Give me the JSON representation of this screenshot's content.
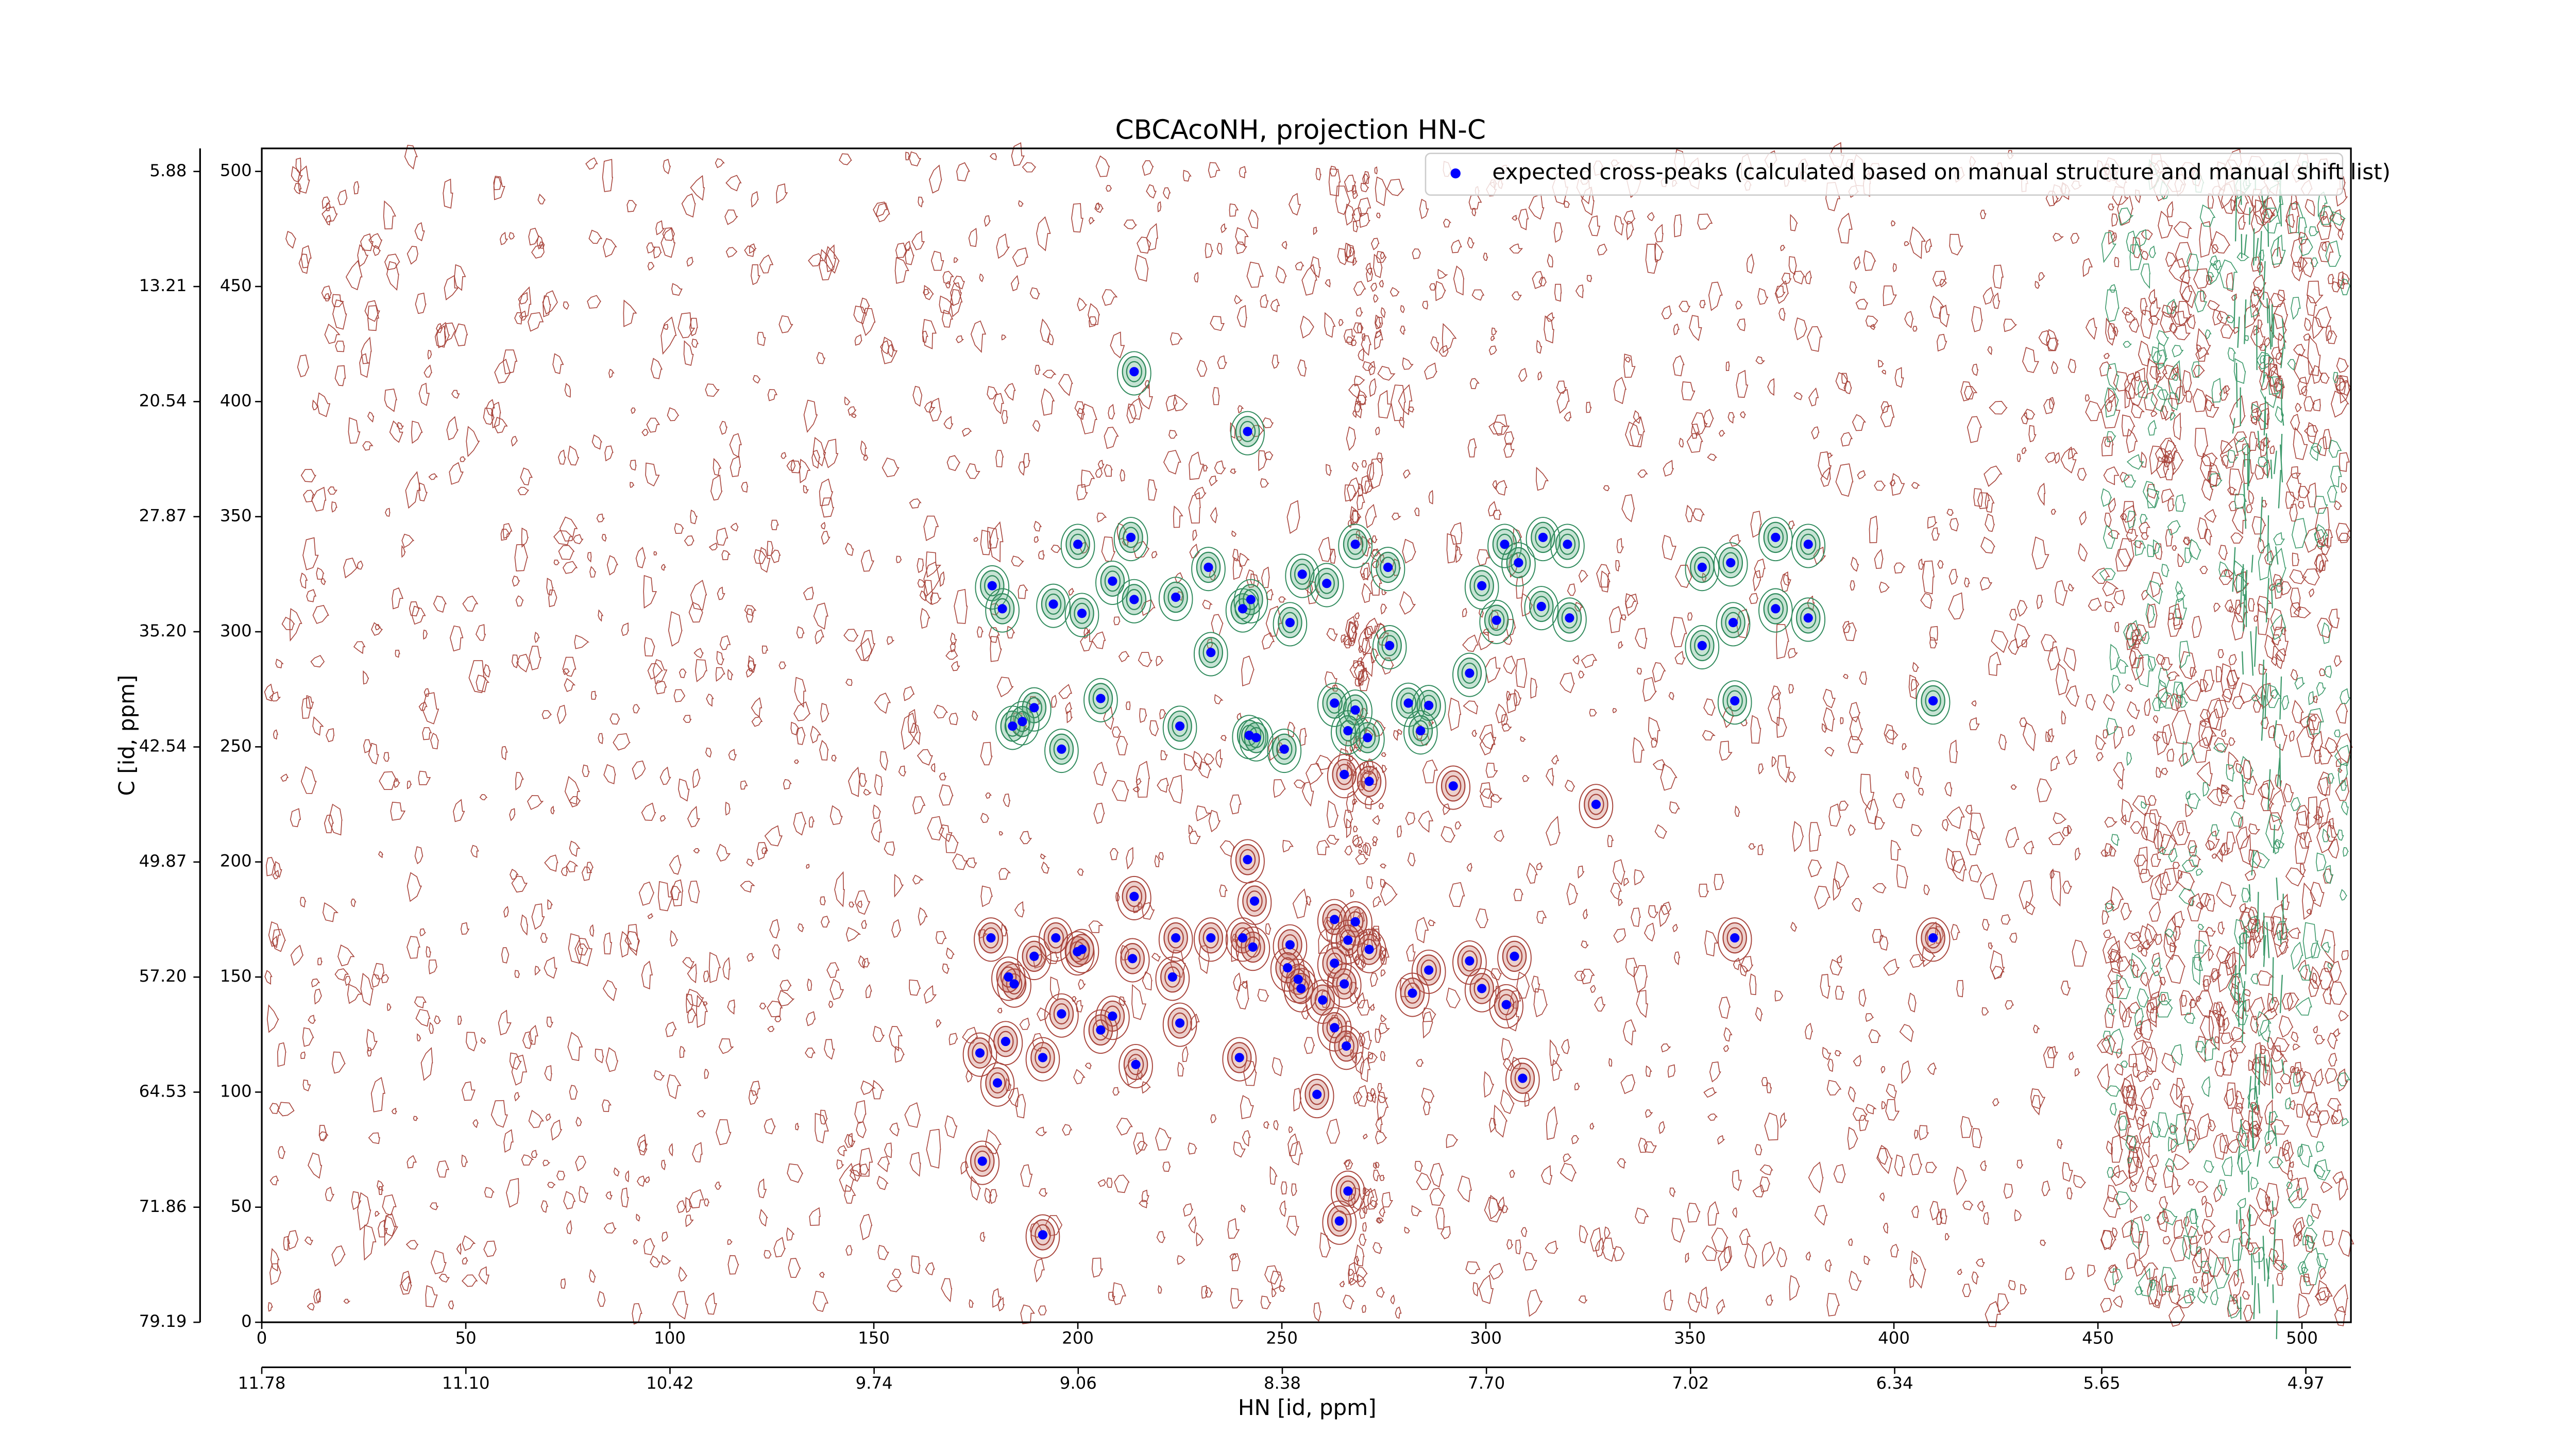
{
  "chart_data": {
    "type": "scatter",
    "title": "CBCAcoNH, projection HN-C",
    "x_label": "HN [id, ppm]",
    "y_label": "C [id, ppm]",
    "xlim": [
      0,
      512
    ],
    "xticks": [
      0,
      50,
      100,
      150,
      200,
      250,
      300,
      350,
      400,
      450,
      500
    ],
    "ylim": [
      0,
      510
    ],
    "yticks": [
      0,
      50,
      100,
      150,
      200,
      250,
      300,
      350,
      400,
      450,
      500
    ],
    "x2lim": [
      11.78,
      4.82
    ],
    "x2ticks": [
      11.78,
      {
        "value": 11.1,
        "label": "11.10"
      },
      10.42,
      9.74,
      9.06,
      8.38,
      {
        "value": 7.7,
        "label": "7.70"
      },
      7.02,
      6.34,
      5.65,
      4.97
    ],
    "y2lim": [
      79.19,
      4.41
    ],
    "y2ticks": [
      5.88,
      13.21,
      20.54,
      27.87,
      {
        "value": 35.2,
        "label": "35.20"
      },
      42.54,
      49.87,
      {
        "value": 57.2,
        "label": "57.20"
      },
      64.53,
      71.86,
      79.19
    ],
    "legend": "upper right",
    "x": [
      213.8,
      241.6,
      200,
      213,
      179,
      181.5,
      194,
      201,
      208.5,
      213.8,
      224,
      232,
      240.4,
      242.4,
      232.6,
      252,
      255,
      261,
      268,
      276,
      276.4,
      299,
      302.6,
      304.6,
      308,
      314,
      320,
      313.6,
      320.5,
      296,
      353,
      360,
      371,
      379,
      353,
      360.6,
      371,
      379,
      361,
      409.6,
      189.3,
      184,
      186.4,
      196,
      205.6,
      225,
      242,
      243.7,
      250.6,
      262.9,
      268,
      266.2,
      271,
      281,
      286,
      284,
      265.3,
      271.4,
      292,
      327,
      241.6,
      213.8,
      243.3,
      178.7,
      184.4,
      183,
      189.3,
      194.6,
      199.9,
      201,
      213.4,
      224,
      232.6,
      223.2,
      240.4,
      242.9,
      252,
      254,
      251.4,
      254.7,
      262.9,
      268,
      266.2,
      271.4,
      262.9,
      260,
      265.3,
      286,
      282,
      296,
      299,
      307,
      305,
      361,
      409.6,
      196,
      208.5,
      205.6,
      225,
      182.3,
      176,
      191.4,
      214.2,
      239.6,
      262.9,
      265.8,
      258.6,
      180.3,
      309,
      176.6,
      191.4,
      266.2,
      264.1
    ],
    "series": [
      {
        "name": "expected cross-peaks (calculated based on manual structure and manual shift list)",
        "color": "#0000ff",
        "values": [
          413,
          387,
          338,
          341,
          320,
          310,
          312,
          308,
          322,
          314,
          315,
          328,
          310,
          314,
          291,
          304,
          325,
          321,
          338,
          328,
          294,
          320,
          305,
          338,
          330,
          341,
          338,
          311,
          306,
          282,
          328,
          330,
          341,
          338,
          294,
          304,
          310,
          306,
          270,
          270,
          267,
          259,
          261,
          249,
          271,
          259,
          255,
          254,
          249,
          269,
          266,
          257,
          254,
          269,
          268,
          257,
          238,
          235,
          233,
          225,
          201,
          185,
          183,
          167,
          147,
          150,
          159,
          167,
          161,
          162,
          158,
          167,
          167,
          150,
          167,
          163,
          164,
          149,
          154,
          145,
          175,
          174,
          166,
          162,
          156,
          140,
          147,
          153,
          143,
          157,
          145,
          159,
          138,
          167,
          167,
          134,
          133,
          127,
          130,
          122,
          117,
          115,
          112,
          115,
          128,
          120,
          99,
          104,
          106,
          70,
          38,
          57,
          44
        ]
      }
    ]
  }
}
